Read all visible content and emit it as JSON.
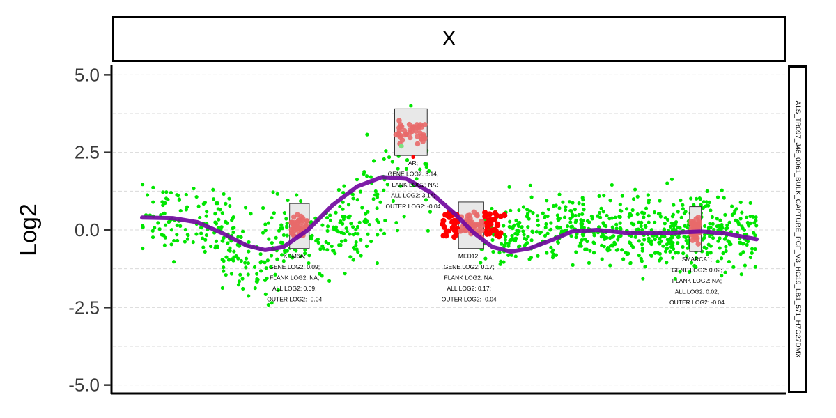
{
  "chart_data": {
    "type": "scatter",
    "panel": "X",
    "sample_label": "ALS_TR097_J48_0061_BULK_CAPTURE_PCF_V3_HG19_LB1_571_H7G27DMX",
    "ylabel": "Log2",
    "ylim": [
      -5.3,
      5.3
    ],
    "xlim": [
      0,
      100
    ],
    "yticks": [
      {
        "value": 5.0,
        "label": "5.0"
      },
      {
        "value": 2.5,
        "label": "2.5"
      },
      {
        "value": 0.0,
        "label": "0.0"
      },
      {
        "value": -2.5,
        "label": "-2.5"
      },
      {
        "value": -5.0,
        "label": "-5.0"
      }
    ],
    "minor_grid": [
      3.75,
      1.25,
      -1.25,
      -3.75
    ],
    "grid": true,
    "point_colors": {
      "background": "#00e600",
      "gene": "#ff0000",
      "gene_box": "#e86a6a",
      "box_fill": "#e8e8e8",
      "smooth": "#7209a0",
      "gene_green": "#7fe07f"
    },
    "smooth_line": [
      [
        0,
        0.4
      ],
      [
        5,
        0.38
      ],
      [
        9,
        0.25
      ],
      [
        13,
        -0.1
      ],
      [
        17,
        -0.5
      ],
      [
        20,
        -0.65
      ],
      [
        23,
        -0.55
      ],
      [
        27,
        0.0
      ],
      [
        31,
        0.8
      ],
      [
        35,
        1.4
      ],
      [
        39,
        1.7
      ],
      [
        43,
        1.65
      ],
      [
        47,
        1.2
      ],
      [
        51,
        0.5
      ],
      [
        54,
        -0.1
      ],
      [
        57,
        -0.55
      ],
      [
        60,
        -0.7
      ],
      [
        63,
        -0.6
      ],
      [
        67,
        -0.3
      ],
      [
        70,
        -0.05
      ],
      [
        74,
        0.0
      ],
      [
        79,
        -0.1
      ],
      [
        85,
        -0.1
      ],
      [
        91,
        -0.05
      ],
      [
        95,
        -0.12
      ],
      [
        100,
        -0.3
      ]
    ],
    "clusters": [
      {
        "x0": 0,
        "x1": 15,
        "mean": 0.3,
        "sd": 0.55,
        "n": 120
      },
      {
        "x0": 13,
        "x1": 22,
        "mean": -0.8,
        "sd": 0.7,
        "n": 90
      },
      {
        "x0": 22,
        "x1": 36,
        "mean": -0.2,
        "sd": 0.5,
        "n": 120
      },
      {
        "x0": 32,
        "x1": 40,
        "mean": 0.6,
        "sd": 0.7,
        "n": 40
      },
      {
        "x0": 36,
        "x1": 43,
        "mean": 1.1,
        "sd": 0.9,
        "n": 25
      },
      {
        "x0": 43,
        "x1": 47,
        "mean": 1.9,
        "sd": 0.9,
        "n": 20
      },
      {
        "x0": 55,
        "x1": 100,
        "mean": -0.15,
        "sd": 0.5,
        "n": 500
      },
      {
        "x0": 62,
        "x1": 100,
        "mean": 0.2,
        "sd": 0.6,
        "n": 140
      }
    ],
    "genes": [
      {
        "name": "KDM6A",
        "x0": 24.0,
        "x1": 27.2,
        "y0": -0.6,
        "y1": 0.85,
        "mean": 0.09,
        "label_x": 24.8,
        "lines": [
          "KDM6A;",
          "GENE LOG2: 0.09;",
          "FLANK LOG2: NA;",
          "ALL LOG2: 0.09;",
          "OUTER LOG2: -0.04"
        ]
      },
      {
        "name": "AR",
        "x0": 41.1,
        "x1": 46.4,
        "y0": 2.4,
        "y1": 3.9,
        "mean": 3.14,
        "label_x": 44.1,
        "lines": [
          "AR;",
          "GENE LOG2: 3.14;",
          "FLANK LOG2: NA;",
          "ALL LOG2: 3.14;",
          "OUTER LOG2: -0.04"
        ]
      },
      {
        "name": "MED12",
        "x0": 51.5,
        "x1": 55.6,
        "y0": -0.6,
        "y1": 0.9,
        "mean": 0.17,
        "label_x": 53.2,
        "red_flanks": true,
        "lines": [
          "MED12;",
          "GENE LOG2: 0.17;",
          "FLANK LOG2: NA;",
          "ALL LOG2: 0.17;",
          "OUTER LOG2: -0.04"
        ]
      },
      {
        "name": "SMARCA1",
        "x0": 89.1,
        "x1": 91.0,
        "y0": -0.7,
        "y1": 0.75,
        "mean": 0.02,
        "label_x": 90.3,
        "lines": [
          "SMARCA1;",
          "GENE LOG2: 0.02;",
          "FLANK LOG2: NA;",
          "ALL LOG2: 0.02;",
          "OUTER LOG2: -0.04"
        ]
      }
    ]
  }
}
